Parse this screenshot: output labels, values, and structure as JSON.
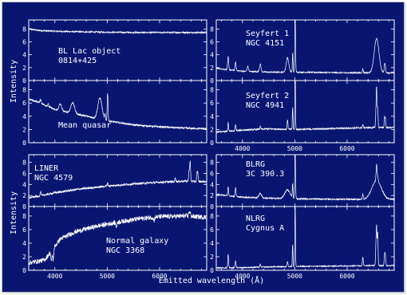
{
  "colors": {
    "background": "#081672",
    "foreground": "#ffffff"
  },
  "figure": {
    "ylabel": "Intensity",
    "xlabel": "Emitted wavelength (Å)"
  },
  "chart_data": [
    {
      "type": "line",
      "title": [
        "BL Lac object",
        "0814+425"
      ],
      "xlim": [
        3500,
        6900
      ],
      "ylim": [
        0,
        9.4
      ],
      "yticks": [
        0,
        2,
        4,
        6,
        8
      ],
      "xticks": [],
      "baseline": [
        [
          3500,
          8.0
        ],
        [
          3700,
          7.75
        ],
        [
          4000,
          7.65
        ],
        [
          4500,
          7.55
        ],
        [
          5000,
          7.5
        ],
        [
          5500,
          7.45
        ],
        [
          6000,
          7.45
        ],
        [
          6500,
          7.45
        ],
        [
          6900,
          7.45
        ]
      ],
      "lines": [],
      "noise": 0.12
    },
    {
      "type": "line",
      "title": [
        "Seyfert 1",
        "NGC 4151"
      ],
      "xlim": [
        3500,
        6900
      ],
      "ylim": [
        0,
        9.4
      ],
      "yticks": [
        0,
        2,
        4,
        6,
        8
      ],
      "xticks": [],
      "baseline": [
        [
          3500,
          1.9
        ],
        [
          3700,
          1.7
        ],
        [
          4000,
          1.45
        ],
        [
          4500,
          1.3
        ],
        [
          5000,
          1.3
        ],
        [
          5500,
          1.25
        ],
        [
          6000,
          1.2
        ],
        [
          6500,
          1.2
        ],
        [
          6900,
          1.2
        ]
      ],
      "lines": [
        [
          3727,
          2.0,
          10
        ],
        [
          3869,
          1.3,
          10
        ],
        [
          4102,
          0.8,
          12
        ],
        [
          4340,
          1.2,
          15
        ],
        [
          4861,
          2.2,
          25
        ],
        [
          4959,
          3.0,
          6
        ],
        [
          5007,
          9.0,
          7
        ],
        [
          6300,
          0.6,
          8
        ],
        [
          6563,
          5.3,
          45
        ],
        [
          6716,
          1.2,
          8
        ],
        [
          6731,
          1.0,
          8
        ]
      ],
      "noise": 0.1
    },
    {
      "type": "line",
      "title": "Mean quasar",
      "xlim": [
        3500,
        6900
      ],
      "ylim": [
        0,
        9.4
      ],
      "yticks": [
        0,
        2,
        4,
        6,
        8
      ],
      "xticks": [],
      "baseline": [
        [
          3500,
          6.6
        ],
        [
          3700,
          6.1
        ],
        [
          4000,
          5.0
        ],
        [
          4500,
          4.2
        ],
        [
          5000,
          3.3
        ],
        [
          5500,
          2.7
        ],
        [
          6000,
          2.4
        ],
        [
          6500,
          2.2
        ],
        [
          6900,
          2.1
        ]
      ],
      "lines": [
        [
          3727,
          0.6,
          10
        ],
        [
          3869,
          0.4,
          10
        ],
        [
          4102,
          1.0,
          25
        ],
        [
          4340,
          1.6,
          35
        ],
        [
          4861,
          3.2,
          40
        ],
        [
          4959,
          0.8,
          8
        ],
        [
          5007,
          4.3,
          8
        ]
      ],
      "noise": 0.14
    },
    {
      "type": "line",
      "title": [
        "Seyfert 2",
        "NGC 4941"
      ],
      "xlim": [
        3500,
        6900
      ],
      "ylim": [
        0,
        9.4
      ],
      "yticks": [
        0,
        2,
        4,
        6,
        8
      ],
      "xticks": [
        4000,
        5000,
        6000
      ],
      "baseline": [
        [
          3500,
          1.6
        ],
        [
          3700,
          1.7
        ],
        [
          4000,
          1.9
        ],
        [
          4500,
          2.1
        ],
        [
          5000,
          2.0
        ],
        [
          5500,
          2.1
        ],
        [
          6000,
          2.2
        ],
        [
          6500,
          2.3
        ],
        [
          6900,
          2.3
        ]
      ],
      "lines": [
        [
          3727,
          1.3,
          8
        ],
        [
          3869,
          0.9,
          8
        ],
        [
          4340,
          0.4,
          8
        ],
        [
          4861,
          1.5,
          8
        ],
        [
          4959,
          3.4,
          6
        ],
        [
          5007,
          9.2,
          6
        ],
        [
          6300,
          0.5,
          7
        ],
        [
          6548,
          1.5,
          7
        ],
        [
          6563,
          6.0,
          8
        ],
        [
          6584,
          3.0,
          7
        ],
        [
          6716,
          1.5,
          7
        ],
        [
          6731,
          1.3,
          7
        ]
      ],
      "noise": 0.12
    },
    {
      "type": "line",
      "title": [
        "LINER",
        "NGC 4579"
      ],
      "xlim": [
        3500,
        6900
      ],
      "ylim": [
        0,
        9.4
      ],
      "yticks": [
        0,
        2,
        4,
        6,
        8
      ],
      "xticks": [],
      "baseline": [
        [
          3500,
          1.6
        ],
        [
          3700,
          1.9
        ],
        [
          4000,
          2.5
        ],
        [
          4500,
          3.2
        ],
        [
          5000,
          3.7
        ],
        [
          5500,
          4.1
        ],
        [
          6000,
          4.4
        ],
        [
          6500,
          4.6
        ],
        [
          6900,
          4.5
        ]
      ],
      "lines": [
        [
          3727,
          0.8,
          8
        ],
        [
          5007,
          0.6,
          8
        ],
        [
          6300,
          0.8,
          8
        ],
        [
          6563,
          2.0,
          8
        ],
        [
          6584,
          3.6,
          8
        ],
        [
          6716,
          1.4,
          8
        ],
        [
          6731,
          1.3,
          8
        ]
      ],
      "noise": 0.2
    },
    {
      "type": "line",
      "title": [
        "BLRG",
        "3C 390.3"
      ],
      "xlim": [
        3500,
        6900
      ],
      "ylim": [
        0,
        9.4
      ],
      "yticks": [
        0,
        2,
        4,
        6,
        8
      ],
      "xticks": [],
      "baseline": [
        [
          3500,
          2.2
        ],
        [
          3700,
          2.0
        ],
        [
          4000,
          1.7
        ],
        [
          4500,
          1.5
        ],
        [
          5000,
          1.4
        ],
        [
          5500,
          1.35
        ],
        [
          6000,
          1.3
        ],
        [
          6500,
          1.3
        ],
        [
          6900,
          1.3
        ]
      ],
      "lines": [
        [
          3727,
          1.6,
          8
        ],
        [
          3869,
          1.6,
          8
        ],
        [
          4340,
          0.8,
          25
        ],
        [
          4861,
          1.6,
          50
        ],
        [
          4959,
          2.6,
          6
        ],
        [
          5007,
          8.8,
          7
        ],
        [
          6300,
          0.9,
          8
        ],
        [
          6563,
          3.4,
          90
        ],
        [
          6563,
          3.0,
          9
        ],
        [
          6584,
          0.8,
          8
        ]
      ],
      "noise": 0.13
    },
    {
      "type": "line",
      "title": [
        "Normal galaxy",
        "NGC 3368"
      ],
      "xlim": [
        3500,
        6900
      ],
      "ylim": [
        0,
        9.4
      ],
      "yticks": [
        0,
        2,
        4,
        6,
        8
      ],
      "xticks": [
        4000,
        5000,
        6000
      ],
      "baseline": [
        [
          3500,
          1.1
        ],
        [
          3800,
          1.5
        ],
        [
          3950,
          3.0
        ],
        [
          4100,
          4.6
        ],
        [
          4400,
          5.7
        ],
        [
          4800,
          6.5
        ],
        [
          5200,
          7.1
        ],
        [
          5600,
          7.6
        ],
        [
          6000,
          7.9
        ],
        [
          6500,
          8.0
        ],
        [
          6900,
          7.8
        ]
      ],
      "lines": [
        [
          3934,
          -1.6,
          10
        ],
        [
          3968,
          -1.6,
          10
        ],
        [
          5175,
          -0.6,
          12
        ],
        [
          5893,
          -0.5,
          10
        ],
        [
          6563,
          0.7,
          8
        ],
        [
          6584,
          0.5,
          8
        ]
      ],
      "noise": 0.35
    },
    {
      "type": "line",
      "title": [
        "NLRG",
        "Cygnus A"
      ],
      "xlim": [
        3500,
        6900
      ],
      "ylim": [
        0,
        9.4
      ],
      "yticks": [
        0,
        2,
        4,
        6,
        8
      ],
      "xticks": [
        4000,
        5000,
        6000
      ],
      "baseline": [
        [
          3500,
          0.35
        ],
        [
          4000,
          0.4
        ],
        [
          4500,
          0.5
        ],
        [
          5000,
          0.55
        ],
        [
          5500,
          0.6
        ],
        [
          6000,
          0.65
        ],
        [
          6500,
          0.7
        ],
        [
          6900,
          0.7
        ]
      ],
      "lines": [
        [
          3727,
          2.0,
          8
        ],
        [
          3869,
          1.0,
          8
        ],
        [
          4340,
          0.4,
          8
        ],
        [
          4861,
          0.8,
          8
        ],
        [
          4959,
          3.2,
          6
        ],
        [
          5007,
          9.4,
          6
        ],
        [
          6300,
          1.3,
          8
        ],
        [
          6548,
          2.0,
          7
        ],
        [
          6563,
          5.8,
          8
        ],
        [
          6584,
          4.8,
          7
        ],
        [
          6716,
          1.5,
          8
        ],
        [
          6731,
          1.4,
          8
        ]
      ],
      "noise": 0.08
    }
  ]
}
